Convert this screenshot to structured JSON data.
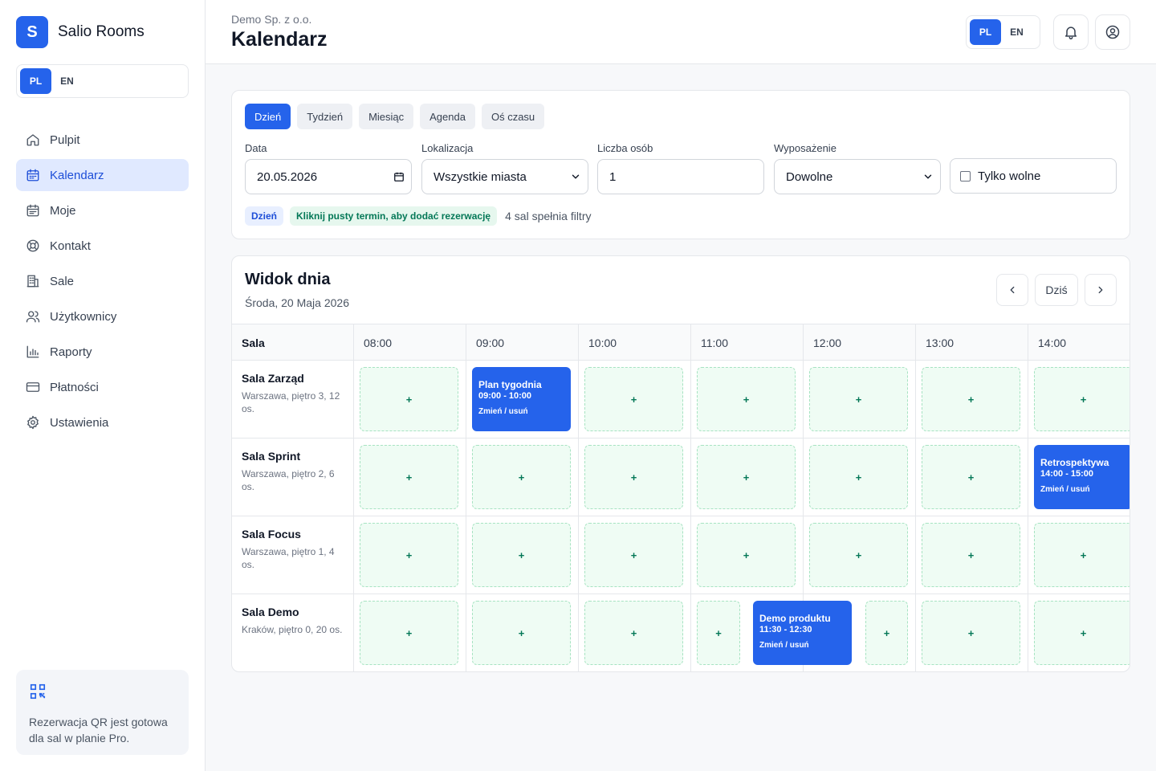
{
  "brand": {
    "logo_letter": "S",
    "name": "Salio Rooms"
  },
  "lang": {
    "pl": "PL",
    "en": "EN"
  },
  "nav": [
    {
      "label": "Pulpit",
      "icon": "home-icon",
      "active": false
    },
    {
      "label": "Kalendarz",
      "icon": "calendar-icon",
      "active": true
    },
    {
      "label": "Moje",
      "icon": "calendar-list-icon",
      "active": false
    },
    {
      "label": "Kontakt",
      "icon": "lifebuoy-icon",
      "active": false
    },
    {
      "label": "Sale",
      "icon": "building-icon",
      "active": false
    },
    {
      "label": "Użytkownicy",
      "icon": "users-icon",
      "active": false
    },
    {
      "label": "Raporty",
      "icon": "bar-chart-icon",
      "active": false
    },
    {
      "label": "Płatności",
      "icon": "credit-card-icon",
      "active": false
    },
    {
      "label": "Ustawienia",
      "icon": "gear-icon",
      "active": false
    }
  ],
  "qr_card": {
    "text": "Rezerwacja QR jest gotowa dla sal w planie Pro."
  },
  "header": {
    "org": "Demo Sp. z o.o.",
    "title": "Kalendarz"
  },
  "views": [
    {
      "label": "Dzień",
      "active": true
    },
    {
      "label": "Tydzień",
      "active": false
    },
    {
      "label": "Miesiąc",
      "active": false
    },
    {
      "label": "Agenda",
      "active": false
    },
    {
      "label": "Oś czasu",
      "active": false
    }
  ],
  "filters": {
    "date": {
      "label": "Data",
      "value": "20.05.2026"
    },
    "location": {
      "label": "Lokalizacja",
      "value": "Wszystkie miasta"
    },
    "people": {
      "label": "Liczba osób",
      "value": "1"
    },
    "equipment": {
      "label": "Wyposażenie",
      "value": "Dowolne"
    },
    "only_free": {
      "label": "Tylko wolne",
      "checked": false
    }
  },
  "chips": {
    "mode": "Dzień",
    "hint": "Kliknij pusty termin, aby dodać rezerwację",
    "match": "4 sal spełnia filtry"
  },
  "day_view": {
    "title": "Widok dnia",
    "date": "Środa, 20 Maja 2026",
    "today_label": "Dziś",
    "room_header": "Sala",
    "hours": [
      "08:00",
      "09:00",
      "10:00",
      "11:00",
      "12:00",
      "13:00",
      "14:00"
    ],
    "slot_label": "+",
    "rooms": [
      {
        "name": "Sala Zarząd",
        "info": "Warszawa, piętro 3, 12 os."
      },
      {
        "name": "Sala Sprint",
        "info": "Warszawa, piętro 2, 6 os."
      },
      {
        "name": "Sala Focus",
        "info": "Warszawa, piętro 1, 4 os."
      },
      {
        "name": "Sala Demo",
        "info": "Kraków, piętro 0, 20 os."
      }
    ],
    "bookings": [
      {
        "title": "Plan tygodnia",
        "time": "09:00 - 10:00",
        "action": "Zmień / usuń"
      },
      {
        "title": "Retrospektywa",
        "time": "14:00 - 15:00",
        "action": "Zmień / usuń"
      },
      {
        "title": "Demo produktu",
        "time": "11:30 - 12:30",
        "action": "Zmień / usuń"
      }
    ]
  },
  "colors": {
    "accent": "#2563eb",
    "slot_bg": "#effcf4",
    "slot_border": "#a7e3c2",
    "slot_text": "#047857"
  }
}
